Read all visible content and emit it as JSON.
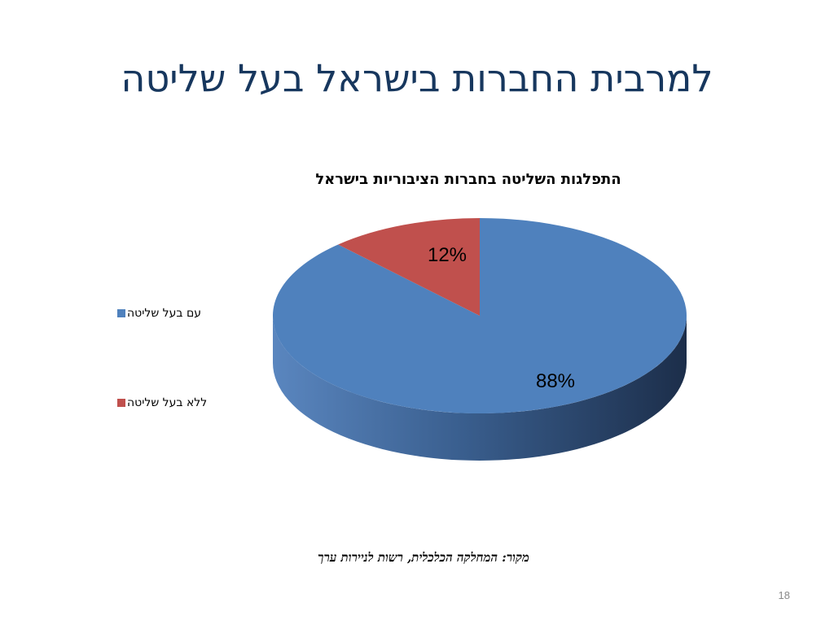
{
  "slide": {
    "title": "למרבית החברות בישראל בעל שליטה",
    "source": "מקור: המחלקה הכלכלית, רשות לניירות ערך",
    "page_number": "18"
  },
  "chart_data": {
    "type": "pie",
    "title": "התפלגות השליטה בחברות הציבוריות בישראל",
    "categories": [
      "עם בעל שליטה",
      "ללא בעל שליטה"
    ],
    "values": [
      88,
      12
    ],
    "data_labels": [
      "88%",
      "12%"
    ],
    "colors": [
      "#4f81bd",
      "#c0504d"
    ],
    "legend_position": "left",
    "style": "3d"
  }
}
